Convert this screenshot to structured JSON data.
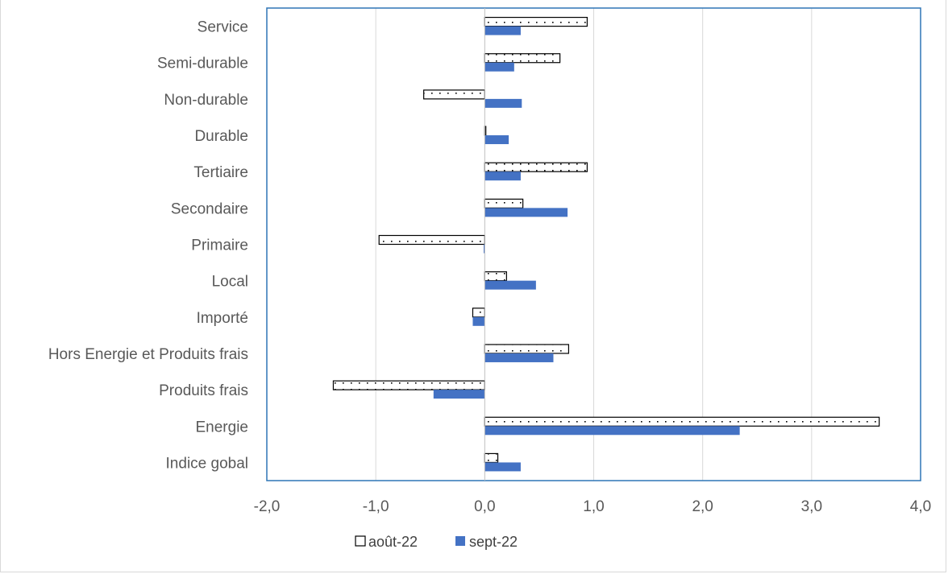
{
  "chart_data": {
    "type": "bar",
    "orientation": "horizontal",
    "categories": [
      "Service",
      "Semi-durable",
      "Non-durable",
      "Durable",
      "Tertiaire",
      "Secondaire",
      "Primaire",
      "Local",
      "Importé",
      "Hors Energie et Produits frais",
      "Produits frais",
      "Energie",
      "Indice gobal"
    ],
    "series": [
      {
        "name": "août-22",
        "values": [
          0.94,
          0.69,
          -0.56,
          0.01,
          0.94,
          0.35,
          -0.97,
          0.2,
          -0.11,
          0.77,
          -1.39,
          3.62,
          0.12
        ],
        "color": "#ffffff",
        "pattern": "dotted",
        "stroke": "#000000"
      },
      {
        "name": "sept-22",
        "values": [
          0.33,
          0.27,
          0.34,
          0.22,
          0.33,
          0.76,
          -0.01,
          0.47,
          -0.11,
          0.63,
          -0.47,
          2.34,
          0.33
        ],
        "color": "#4472c4"
      }
    ],
    "xlim": [
      -2.0,
      4.0
    ],
    "xticks": [
      "-2,0",
      "-1,0",
      "0,0",
      "1,0",
      "2,0",
      "3,0",
      "4,0"
    ],
    "xtick_values": [
      -2,
      -1,
      0,
      1,
      2,
      3,
      4
    ],
    "grid": true,
    "legend_position": "bottom",
    "title": "",
    "xlabel": "",
    "ylabel": ""
  }
}
